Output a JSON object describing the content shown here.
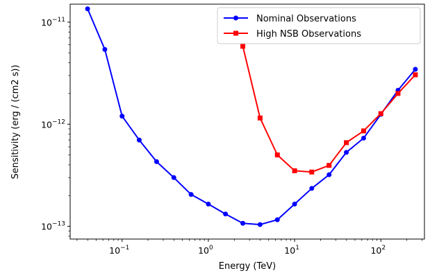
{
  "chart_data": {
    "type": "line",
    "xlabel": "Energy (TeV)",
    "ylabel": "Sensitivity (erg / (cm2 s))",
    "xscale": "log",
    "yscale": "log",
    "xlim": [
      0.025,
      320
    ],
    "ylim": [
      7.5e-14,
      1.5e-11
    ],
    "x_ticks": [
      {
        "value": 0.1,
        "base": "10",
        "exp": "−1"
      },
      {
        "value": 1,
        "base": "10",
        "exp": "0"
      },
      {
        "value": 10,
        "base": "10",
        "exp": "1"
      },
      {
        "value": 100,
        "base": "10",
        "exp": "2"
      }
    ],
    "y_ticks": [
      {
        "value": 1e-13,
        "base": "10",
        "exp": "−13"
      },
      {
        "value": 1e-12,
        "base": "10",
        "exp": "−12"
      },
      {
        "value": 1e-11,
        "base": "10",
        "exp": "−11"
      }
    ],
    "legend_position": "top-right",
    "grid": false,
    "series": [
      {
        "name": "Nominal Observations",
        "color": "#0000ff",
        "marker": "circle",
        "x": [
          0.0398,
          0.0631,
          0.1,
          0.158,
          0.251,
          0.398,
          0.631,
          1.0,
          1.58,
          2.51,
          3.98,
          6.31,
          10.0,
          15.8,
          25.1,
          39.8,
          63.1,
          100,
          158,
          251
        ],
        "y": [
          1.35e-11,
          5.4e-12,
          1.2e-12,
          7e-13,
          4.3e-13,
          3e-13,
          2.05e-13,
          1.65e-13,
          1.32e-13,
          1.07e-13,
          1.04e-13,
          1.16e-13,
          1.65e-13,
          2.35e-13,
          3.2e-13,
          5.3e-13,
          7.3e-13,
          1.25e-12,
          2.15e-12,
          3.45e-12
        ]
      },
      {
        "name": "High NSB Observations",
        "color": "#ff0000",
        "marker": "square",
        "x": [
          2.51,
          3.98,
          6.31,
          10.0,
          15.8,
          25.1,
          39.8,
          63.1,
          100,
          158,
          251
        ],
        "y": [
          5.8e-12,
          1.15e-12,
          5e-13,
          3.5e-13,
          3.4e-13,
          3.95e-13,
          6.6e-13,
          8.6e-13,
          1.27e-12,
          2e-12,
          3.05e-12
        ]
      }
    ]
  }
}
